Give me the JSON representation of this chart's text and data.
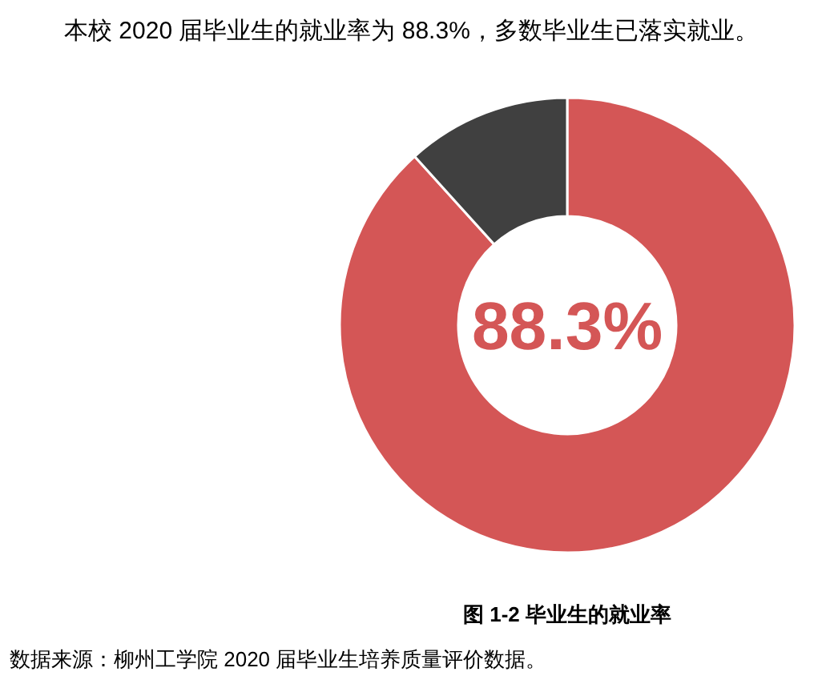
{
  "chart_data": {
    "type": "donut",
    "title": "图 1-2  毕业生的就业率",
    "categories": [
      null,
      null
    ],
    "values": [
      88.3,
      11.7
    ],
    "colors": [
      "#d45656",
      "#404040"
    ],
    "value_labels": [
      "88.3%",
      null
    ],
    "annotations": [
      "本校 2020 届毕业生的就业率为 88.3%，多数毕业生已落实就业。",
      "数据来源：柳州工学院 2020 届毕业生培养质量评价数据。"
    ]
  }
}
